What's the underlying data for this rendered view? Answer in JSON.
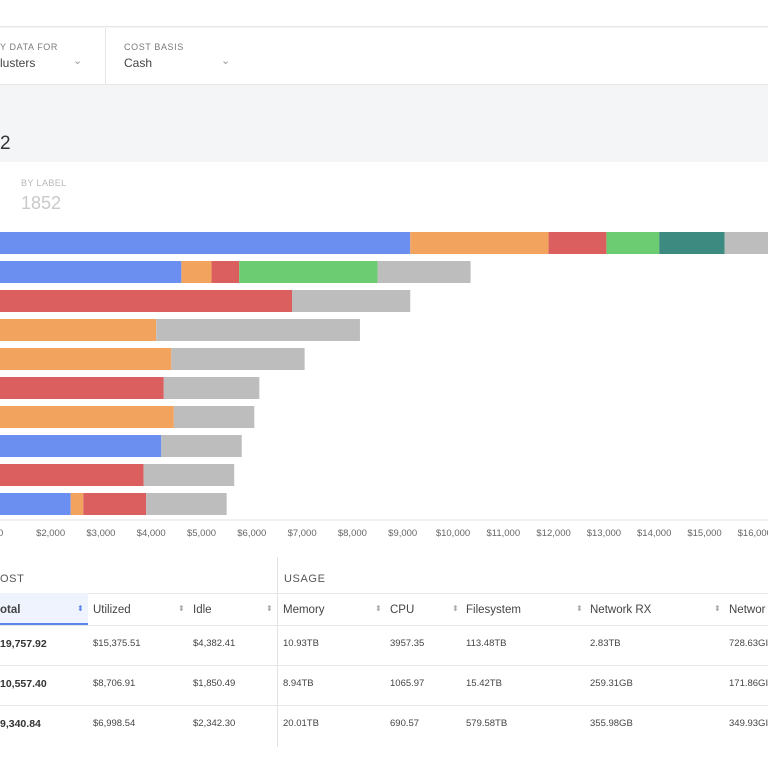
{
  "filters": [
    {
      "label": "Y DATA FOR",
      "value": "lusters"
    },
    {
      "label": "COST BASIS",
      "value": "Cash"
    }
  ],
  "page_title": "2",
  "stat": {
    "label": "BY LABEL",
    "value": "1852"
  },
  "icons": {
    "chevron": "chevron-down-icon",
    "sort": "sort-icon"
  },
  "colors": {
    "blue": "#6b8ff0",
    "orange": "#f2a35e",
    "red": "#dc5f5f",
    "green": "#6ccc72",
    "teal": "#3d8a80",
    "gray": "#bdbdbd"
  },
  "chart_data": {
    "type": "bar",
    "orientation": "horizontal",
    "stacked": true,
    "x_ticks": [
      "$2,000",
      "$3,000",
      "$4,000",
      "$5,000",
      "$6,000",
      "$7,000",
      "$8,000",
      "$9,000",
      "$10,000",
      "$11,000",
      "$12,000",
      "$13,000",
      "$14,000",
      "$15,000",
      "$16,000"
    ],
    "first_tick_partial": "0",
    "x_min": 1000,
    "x_max": 16500,
    "bars": [
      [
        {
          "c": "blue",
          "v": 9150
        },
        {
          "c": "orange",
          "v": 2750
        },
        {
          "c": "red",
          "v": 1150
        },
        {
          "c": "green",
          "v": 1050
        },
        {
          "c": "teal",
          "v": 1300
        },
        {
          "c": "gray",
          "v": 1300
        }
      ],
      [
        {
          "c": "blue",
          "v": 4600
        },
        {
          "c": "orange",
          "v": 600
        },
        {
          "c": "red",
          "v": 550
        },
        {
          "c": "green",
          "v": 2750
        },
        {
          "c": "gray",
          "v": 1850
        }
      ],
      [
        {
          "c": "red",
          "v": 6800
        },
        {
          "c": "gray",
          "v": 2350
        }
      ],
      [
        {
          "c": "orange",
          "v": 4100
        },
        {
          "c": "gray",
          "v": 4050
        }
      ],
      [
        {
          "c": "orange",
          "v": 4400
        },
        {
          "c": "gray",
          "v": 2650
        }
      ],
      [
        {
          "c": "red",
          "v": 4250
        },
        {
          "c": "gray",
          "v": 1900
        }
      ],
      [
        {
          "c": "orange",
          "v": 4450
        },
        {
          "c": "gray",
          "v": 1600
        }
      ],
      [
        {
          "c": "blue",
          "v": 4200
        },
        {
          "c": "gray",
          "v": 1600
        }
      ],
      [
        {
          "c": "red",
          "v": 3850
        },
        {
          "c": "gray",
          "v": 1800
        }
      ],
      [
        {
          "c": "blue",
          "v": 2400
        },
        {
          "c": "orange",
          "v": 250
        },
        {
          "c": "red",
          "v": 1250
        },
        {
          "c": "gray",
          "v": 1600
        }
      ]
    ]
  },
  "table": {
    "groups": [
      "OST",
      "USAGE"
    ],
    "columns": [
      "otal",
      "Utilized",
      "Idle",
      "Memory",
      "CPU",
      "Filesystem",
      "Network RX",
      "Networ"
    ],
    "rows": [
      [
        "19,757.92",
        "$15,375.51",
        "$4,382.41",
        "10.93TB",
        "3957.35",
        "113.48TB",
        "2.83TB",
        "728.63GI"
      ],
      [
        "10,557.40",
        "$8,706.91",
        "$1,850.49",
        "8.94TB",
        "1065.97",
        "15.42TB",
        "259.31GB",
        "171.86GI"
      ],
      [
        "9,340.84",
        "$6,998.54",
        "$2,342.30",
        "20.01TB",
        "690.57",
        "579.58TB",
        "355.98GB",
        "349.93GI"
      ]
    ]
  }
}
